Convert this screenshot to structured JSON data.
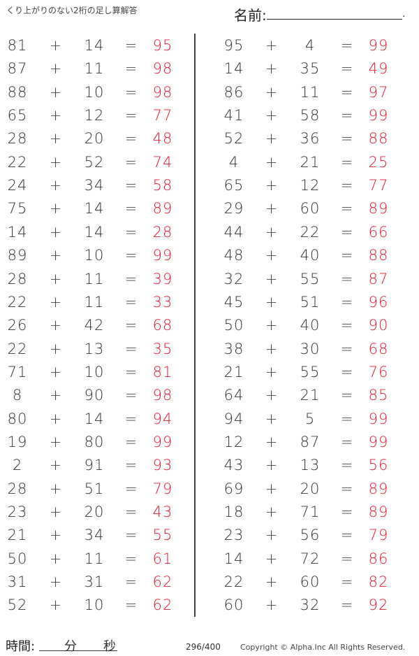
{
  "header": {
    "title": "くり上がりのない2桁の足し算解答",
    "name_label": "名前:",
    "name_end": "."
  },
  "operator": "+",
  "equals": "=",
  "left_column": [
    [
      "81",
      "14",
      "95"
    ],
    [
      "87",
      "11",
      "98"
    ],
    [
      "88",
      "10",
      "98"
    ],
    [
      "65",
      "12",
      "77"
    ],
    [
      "28",
      "20",
      "48"
    ],
    [
      "22",
      "52",
      "74"
    ],
    [
      "24",
      "34",
      "58"
    ],
    [
      "75",
      "14",
      "89"
    ],
    [
      "14",
      "14",
      "28"
    ],
    [
      "89",
      "10",
      "99"
    ],
    [
      "28",
      "11",
      "39"
    ],
    [
      "22",
      "11",
      "33"
    ],
    [
      "26",
      "42",
      "68"
    ],
    [
      "22",
      "13",
      "35"
    ],
    [
      "71",
      "10",
      "81"
    ],
    [
      "8",
      "90",
      "98"
    ],
    [
      "80",
      "14",
      "94"
    ],
    [
      "19",
      "80",
      "99"
    ],
    [
      "2",
      "91",
      "93"
    ],
    [
      "28",
      "51",
      "79"
    ],
    [
      "23",
      "20",
      "43"
    ],
    [
      "21",
      "34",
      "55"
    ],
    [
      "50",
      "11",
      "61"
    ],
    [
      "31",
      "31",
      "62"
    ],
    [
      "52",
      "10",
      "62"
    ]
  ],
  "right_column": [
    [
      "95",
      "4",
      "99"
    ],
    [
      "14",
      "35",
      "49"
    ],
    [
      "86",
      "11",
      "97"
    ],
    [
      "41",
      "58",
      "99"
    ],
    [
      "52",
      "36",
      "88"
    ],
    [
      "4",
      "21",
      "25"
    ],
    [
      "65",
      "12",
      "77"
    ],
    [
      "29",
      "60",
      "89"
    ],
    [
      "44",
      "22",
      "66"
    ],
    [
      "48",
      "40",
      "88"
    ],
    [
      "32",
      "55",
      "87"
    ],
    [
      "45",
      "51",
      "96"
    ],
    [
      "50",
      "40",
      "90"
    ],
    [
      "38",
      "30",
      "68"
    ],
    [
      "21",
      "55",
      "76"
    ],
    [
      "64",
      "21",
      "85"
    ],
    [
      "94",
      "5",
      "99"
    ],
    [
      "12",
      "87",
      "99"
    ],
    [
      "43",
      "13",
      "56"
    ],
    [
      "69",
      "20",
      "89"
    ],
    [
      "18",
      "71",
      "89"
    ],
    [
      "23",
      "56",
      "79"
    ],
    [
      "14",
      "72",
      "86"
    ],
    [
      "22",
      "60",
      "82"
    ],
    [
      "60",
      "32",
      "92"
    ]
  ],
  "footer": {
    "time_label": "時間:",
    "minutes": "分",
    "seconds": "秒",
    "page": "296/400",
    "copyright": "Copyright ©  Alpha.Inc All Rights Reserved."
  },
  "colors": {
    "answer": "#e8192c",
    "text": "#333333"
  }
}
